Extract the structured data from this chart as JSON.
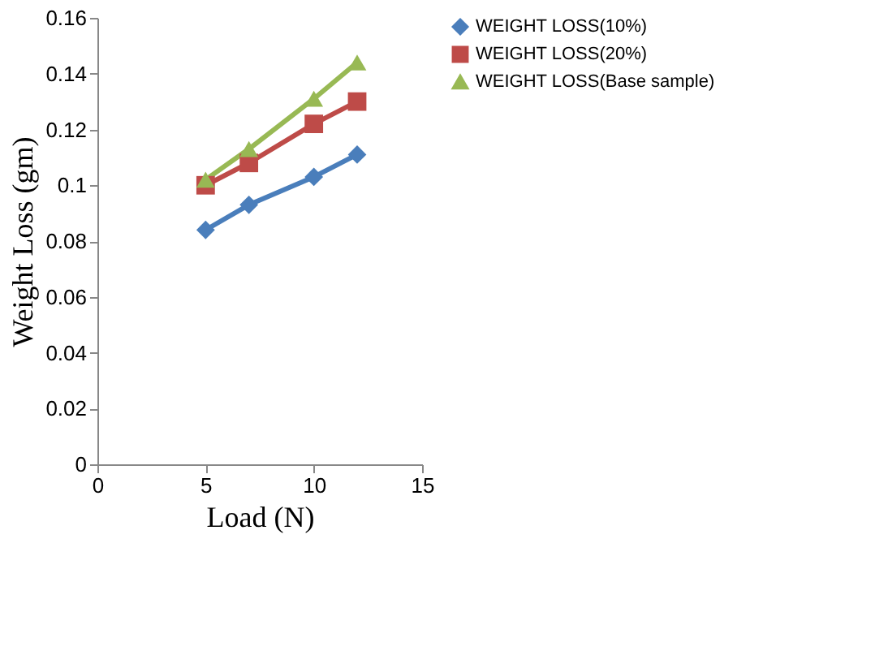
{
  "chart_data": {
    "type": "line",
    "xlabel": "Load (N)",
    "ylabel": "Weight Loss (gm)",
    "x": [
      5,
      7,
      10,
      12
    ],
    "series": [
      {
        "name": "WEIGHT LOSS(10%)",
        "color": "#4a7ebb",
        "values": [
          0.084,
          0.093,
          0.103,
          0.111
        ],
        "marker": "diamond"
      },
      {
        "name": "WEIGHT LOSS(20%)",
        "color": "#be4b48",
        "values": [
          0.1,
          0.108,
          0.122,
          0.13
        ],
        "marker": "square"
      },
      {
        "name": "WEIGHT LOSS(Base sample)",
        "color": "#98b954",
        "values": [
          0.102,
          0.113,
          0.131,
          0.144
        ],
        "marker": "triangle"
      }
    ],
    "xlim": [
      0,
      15
    ],
    "xticks": [
      0,
      5,
      10,
      15
    ],
    "ylim": [
      0,
      0.16
    ],
    "yticks": [
      0,
      0.02,
      0.04,
      0.06,
      0.08,
      0.1,
      0.12,
      0.14,
      0.16
    ],
    "grid": false,
    "legend": "right"
  }
}
